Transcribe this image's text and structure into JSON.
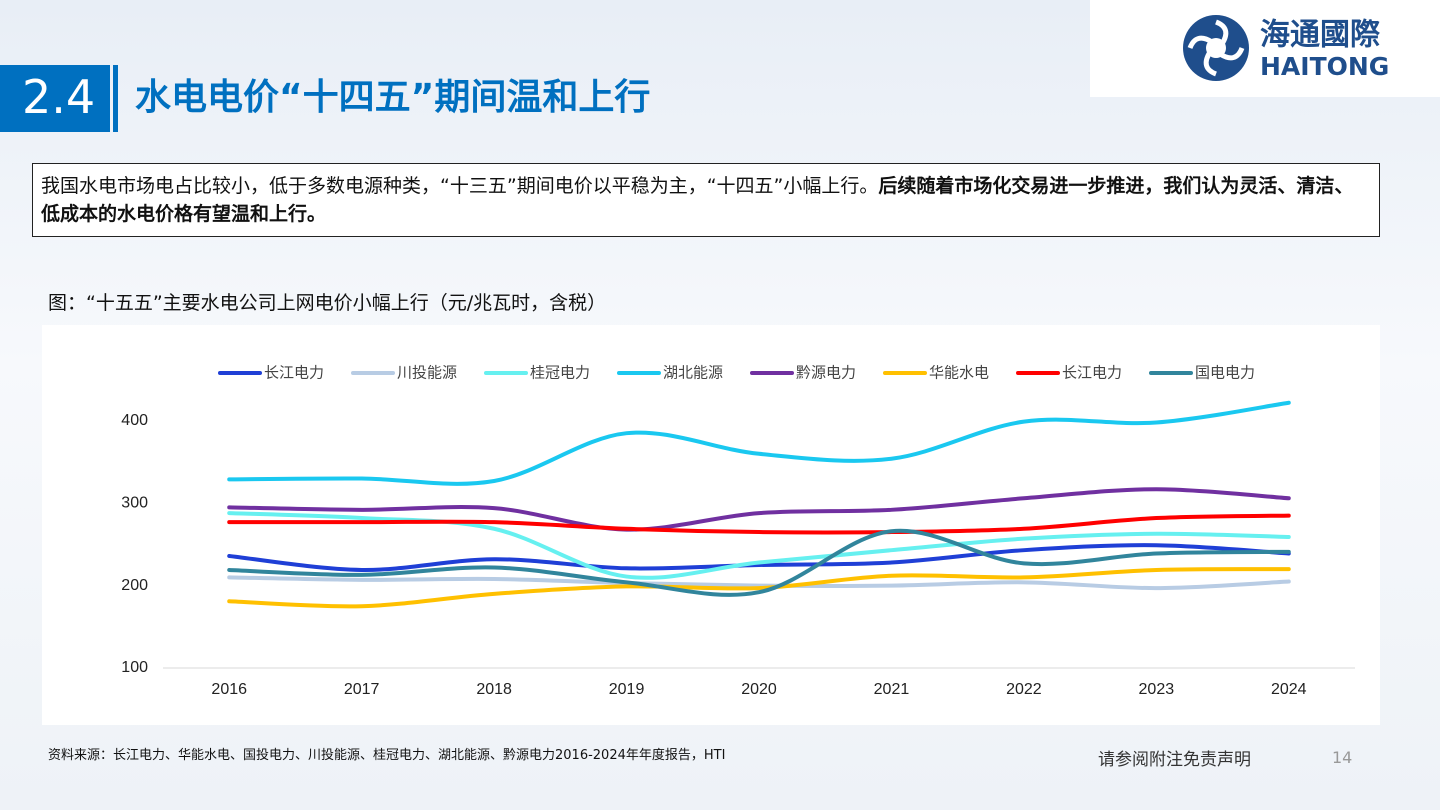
{
  "header": {
    "section": "2.4",
    "title": "水电电价“十四五”期间温和上行",
    "logo_cn": "海通國際",
    "logo_en": "HAITONG"
  },
  "summary": {
    "text": "我国水电市场电占比较小，低于多数电源种类，“十三五”期间电价以平稳为主，“十四五”小幅上行。",
    "bold_text": "后续随着市场化交易进一步推进，我们认为灵活、清洁、低成本的水电价格有望温和上行。"
  },
  "chart_caption": "图：“十五五”主要水电公司上网电价小幅上行（元/兆瓦时，含税）",
  "chart_data": {
    "type": "line",
    "smooth": true,
    "categories": [
      "2016",
      "2017",
      "2018",
      "2019",
      "2020",
      "2021",
      "2022",
      "2023",
      "2024"
    ],
    "ylim": [
      100,
      435
    ],
    "yticks": [
      100,
      200,
      300,
      400
    ],
    "grid": false,
    "legend": "top",
    "series": [
      {
        "name": "长江电力",
        "color": "#1f3fd6",
        "values": [
          236,
          219,
          232,
          221,
          225,
          228,
          243,
          249,
          239
        ]
      },
      {
        "name": "川投能源",
        "color": "#b8cce4",
        "values": [
          210,
          207,
          208,
          203,
          200,
          200,
          204,
          197,
          205
        ]
      },
      {
        "name": "桂冠电力",
        "color": "#66f0f0",
        "values": [
          288,
          282,
          269,
          211,
          228,
          243,
          257,
          263,
          259
        ]
      },
      {
        "name": "湖北能源",
        "color": "#1ac8f0",
        "values": [
          329,
          330,
          327,
          385,
          360,
          354,
          399,
          398,
          422
        ]
      },
      {
        "name": "黔源电力",
        "color": "#7030a0",
        "values": [
          295,
          292,
          294,
          268,
          288,
          292,
          306,
          317,
          306
        ]
      },
      {
        "name": "华能水电",
        "color": "#ffc000",
        "values": [
          181,
          175,
          190,
          199,
          197,
          212,
          210,
          219,
          220
        ]
      },
      {
        "name": "长江电力",
        "color": "#ff0000",
        "values": [
          277,
          277,
          277,
          269,
          265,
          265,
          269,
          282,
          285
        ]
      },
      {
        "name": "国电电力",
        "color": "#31859c",
        "values": [
          219,
          213,
          222,
          204,
          192,
          266,
          227,
          239,
          241
        ]
      }
    ]
  },
  "source": "资料来源：长江电力、华能水电、国投电力、川投能源、桂冠电力、湖北能源、黔源电力2016-2024年年度报告，HTI",
  "footer": {
    "disclaimer": "请参阅附注免责声明",
    "page": "14"
  }
}
